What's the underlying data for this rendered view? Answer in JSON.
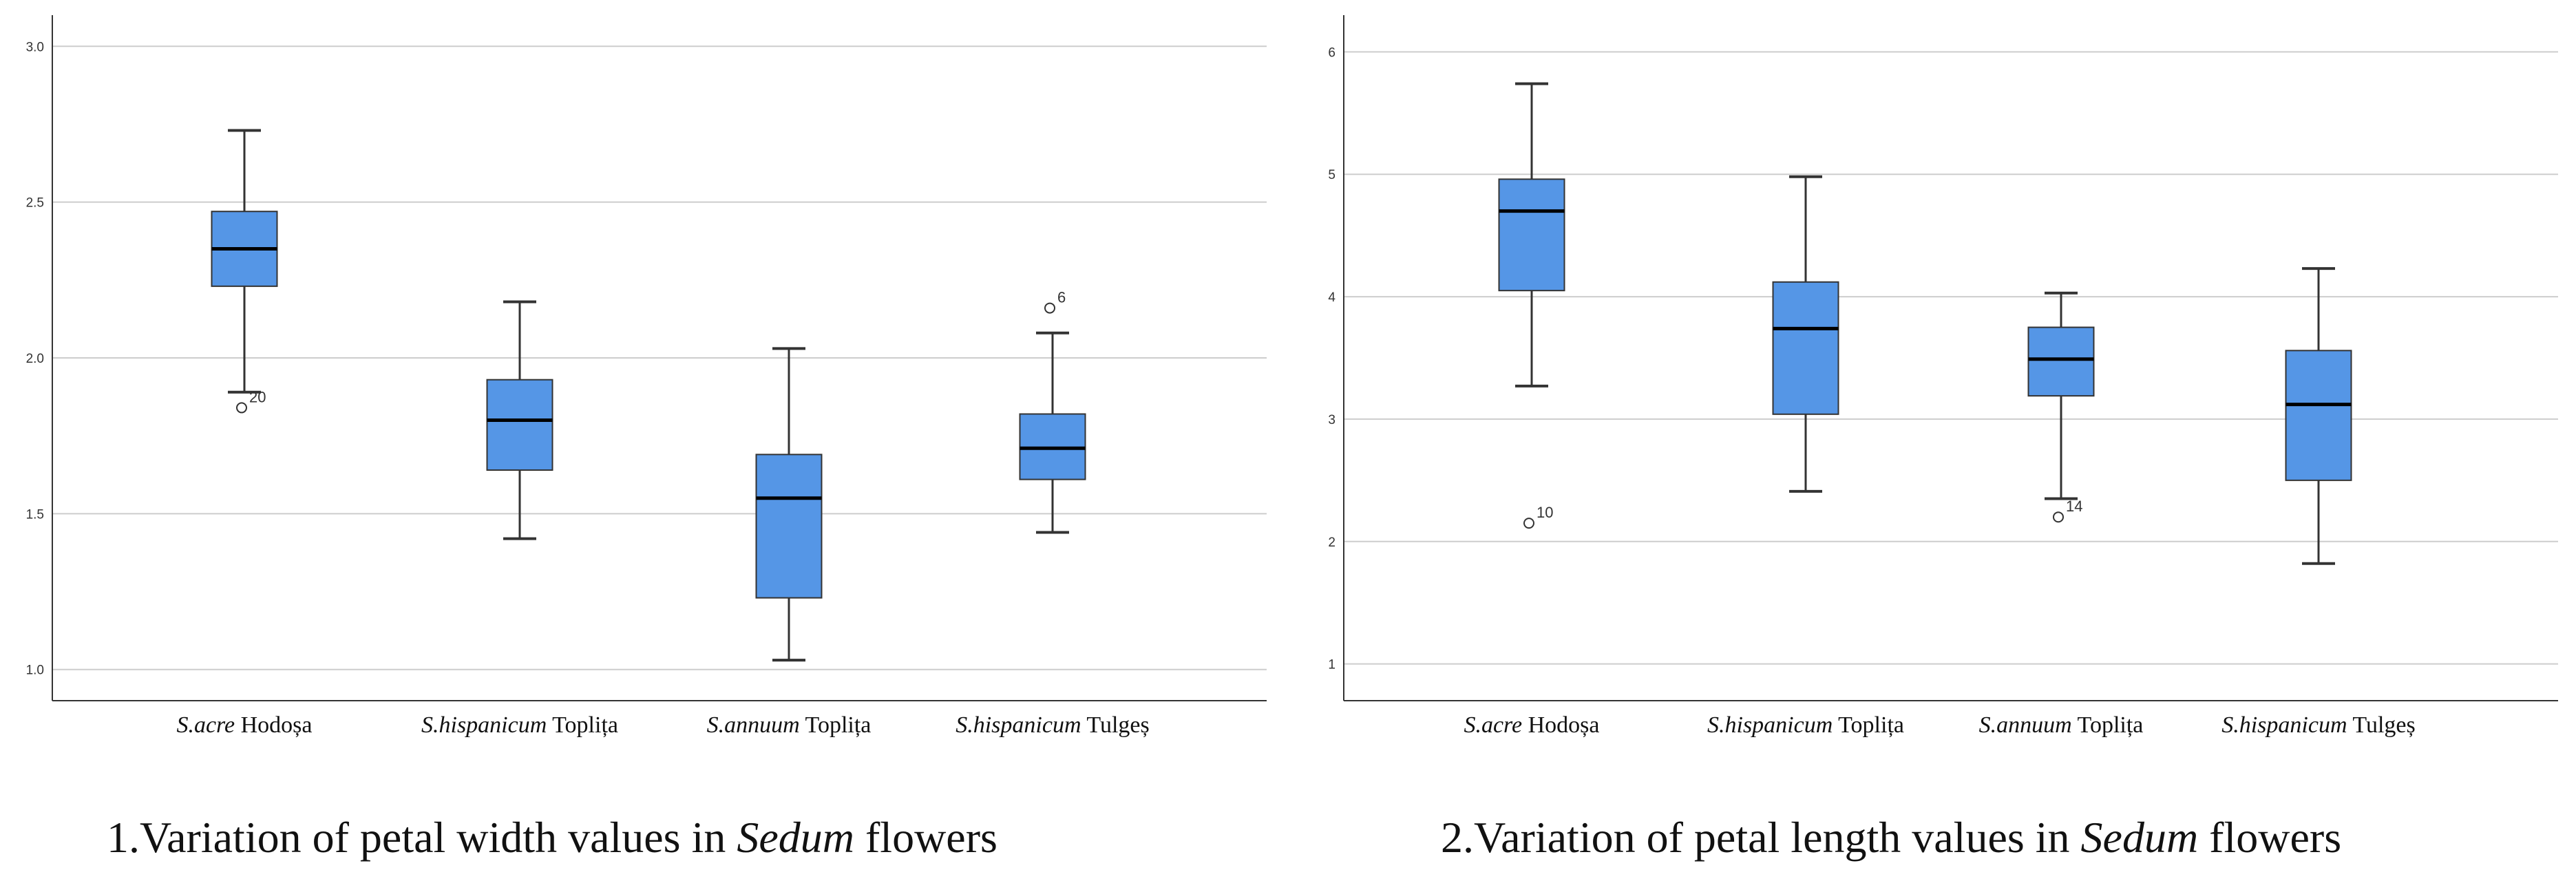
{
  "chart_data": [
    {
      "type": "boxplot",
      "title": "1.Variation of petal width values in Sedum flowers",
      "caption": {
        "number": "1.",
        "prefix": "Variation of petal width values in ",
        "genus": "Sedum",
        "suffix": " flowers"
      },
      "ylim": [
        0.9,
        3.1
      ],
      "yticks": [
        "1.0",
        "1.5",
        "2.0",
        "2.5",
        "3.0"
      ],
      "grid": true,
      "categories": [
        {
          "species": "S.acre",
          "site": "Hodoșa"
        },
        {
          "species": "S.hispanicum",
          "site": "Toplița"
        },
        {
          "species": "S.annuum",
          "site": "Toplița"
        },
        {
          "species": "S.hispanicum",
          "site": "Tulgeș"
        }
      ],
      "boxes": [
        {
          "whisker_low": 1.89,
          "q1": 2.23,
          "median": 2.35,
          "q3": 2.47,
          "whisker_high": 2.73,
          "outliers": [
            {
              "value": 1.84,
              "label": "20"
            }
          ]
        },
        {
          "whisker_low": 1.42,
          "q1": 1.64,
          "median": 1.8,
          "q3": 1.93,
          "whisker_high": 2.18,
          "outliers": []
        },
        {
          "whisker_low": 1.03,
          "q1": 1.23,
          "median": 1.55,
          "q3": 1.69,
          "whisker_high": 2.03,
          "outliers": []
        },
        {
          "whisker_low": 1.44,
          "q1": 1.61,
          "median": 1.71,
          "q3": 1.82,
          "whisker_high": 2.08,
          "outliers": [
            {
              "value": 2.16,
              "label": "6"
            }
          ]
        }
      ]
    },
    {
      "type": "boxplot",
      "title": "2.Variation of petal length values in Sedum flowers",
      "caption": {
        "number": "2.",
        "prefix": "Variation of petal length values in ",
        "genus": "Sedum",
        "suffix": " flowers"
      },
      "ylim": [
        0.7,
        6.3
      ],
      "yticks": [
        "1",
        "2",
        "3",
        "4",
        "5",
        "6"
      ],
      "grid": true,
      "categories": [
        {
          "species": "S.acre",
          "site": "Hodoșa"
        },
        {
          "species": "S.hispanicum",
          "site": "Toplița"
        },
        {
          "species": "S.annuum",
          "site": "Toplița"
        },
        {
          "species": "S.hispanicum",
          "site": "Tulgeș"
        }
      ],
      "boxes": [
        {
          "whisker_low": 3.27,
          "q1": 4.05,
          "median": 4.7,
          "q3": 4.96,
          "whisker_high": 5.74,
          "outliers": [
            {
              "value": 2.15,
              "label": "10"
            }
          ]
        },
        {
          "whisker_low": 2.41,
          "q1": 3.04,
          "median": 3.74,
          "q3": 4.12,
          "whisker_high": 4.98,
          "outliers": []
        },
        {
          "whisker_low": 2.35,
          "q1": 3.19,
          "median": 3.49,
          "q3": 3.75,
          "whisker_high": 4.03,
          "outliers": [
            {
              "value": 2.2,
              "label": "14"
            }
          ]
        },
        {
          "whisker_low": 1.82,
          "q1": 2.5,
          "median": 3.12,
          "q3": 3.56,
          "whisker_high": 4.23,
          "outliers": []
        }
      ]
    }
  ],
  "style": {
    "box_fill": "#5596E6",
    "box_stroke": "#333333",
    "median_color": "#000000",
    "grid_color": "#CDCDCD",
    "axis_color": "#333333"
  }
}
